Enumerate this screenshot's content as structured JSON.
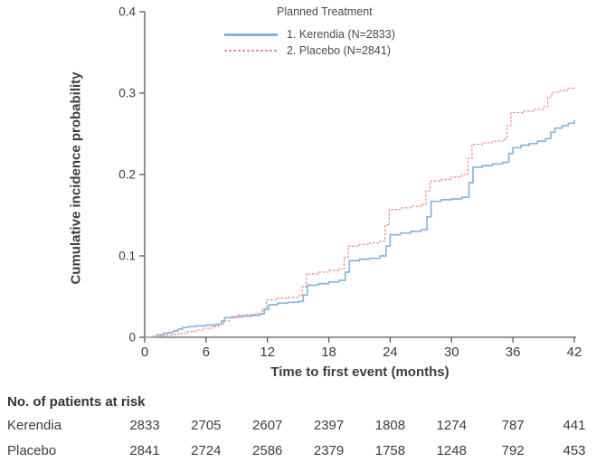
{
  "figure_colors": {
    "kerendia_blue": "#85b5de",
    "placebo_red": "#ef8f90",
    "axis_gray": "#57585a",
    "text_dark": "#3d3d3f"
  },
  "chart_data": {
    "type": "line",
    "subtype": "step-cumulative-incidence",
    "title": "",
    "xlabel": "Time to first event (months)",
    "ylabel": "Cumulative incidence probability",
    "xlim": [
      0,
      42
    ],
    "ylim": [
      0,
      0.4
    ],
    "xticks": [
      0,
      6,
      12,
      18,
      24,
      30,
      36,
      42
    ],
    "yticks": [
      0,
      0.1,
      0.2,
      0.3,
      0.4
    ],
    "ytick_labels": [
      "0",
      "0.1",
      "0.2",
      "0.3",
      "0.4"
    ],
    "grid": false,
    "legend": {
      "position": "top-center",
      "title": "Planned Treatment",
      "entries": [
        {
          "label": "1.  Kerendia (N=2833)",
          "color": "#85b5de",
          "style": "solid"
        },
        {
          "label": "2.  Placebo (N=2841)",
          "color": "#ef8f90",
          "style": "dashed"
        }
      ]
    },
    "series": [
      {
        "name": "Kerendia",
        "color": "#85b5de",
        "style": "solid",
        "points": [
          [
            0,
            0
          ],
          [
            0.8,
            0.001
          ],
          [
            1.2,
            0.003
          ],
          [
            1.8,
            0.005
          ],
          [
            2.3,
            0.006
          ],
          [
            2.8,
            0.008
          ],
          [
            3.3,
            0.01
          ],
          [
            3.7,
            0.012
          ],
          [
            4.2,
            0.013
          ],
          [
            5,
            0.014
          ],
          [
            6,
            0.015
          ],
          [
            7,
            0.016
          ],
          [
            7.5,
            0.02
          ],
          [
            7.8,
            0.024
          ],
          [
            8.5,
            0.025
          ],
          [
            9.5,
            0.026
          ],
          [
            10.5,
            0.027
          ],
          [
            11.3,
            0.029
          ],
          [
            11.7,
            0.034
          ],
          [
            12.1,
            0.04
          ],
          [
            13,
            0.042
          ],
          [
            14,
            0.043
          ],
          [
            15,
            0.044
          ],
          [
            15.5,
            0.052
          ],
          [
            15.9,
            0.064
          ],
          [
            17,
            0.066
          ],
          [
            18,
            0.068
          ],
          [
            19,
            0.07
          ],
          [
            19.6,
            0.08
          ],
          [
            20,
            0.094
          ],
          [
            21,
            0.096
          ],
          [
            22,
            0.097
          ],
          [
            23,
            0.1
          ],
          [
            23.6,
            0.112
          ],
          [
            24,
            0.126
          ],
          [
            25,
            0.128
          ],
          [
            26,
            0.13
          ],
          [
            27,
            0.132
          ],
          [
            27.6,
            0.148
          ],
          [
            28,
            0.167
          ],
          [
            29,
            0.169
          ],
          [
            30,
            0.17
          ],
          [
            31,
            0.172
          ],
          [
            31.7,
            0.19
          ],
          [
            32.1,
            0.209
          ],
          [
            33,
            0.211
          ],
          [
            34,
            0.213
          ],
          [
            35,
            0.215
          ],
          [
            35.6,
            0.226
          ],
          [
            36,
            0.233
          ],
          [
            36.8,
            0.236
          ],
          [
            37.6,
            0.238
          ],
          [
            38.4,
            0.241
          ],
          [
            39.2,
            0.244
          ],
          [
            39.7,
            0.252
          ],
          [
            40.1,
            0.257
          ],
          [
            40.8,
            0.26
          ],
          [
            41.4,
            0.263
          ],
          [
            42,
            0.267
          ]
        ]
      },
      {
        "name": "Placebo",
        "color": "#ef8f90",
        "style": "dashed",
        "points": [
          [
            0,
            0
          ],
          [
            1,
            0.001
          ],
          [
            1.6,
            0.002
          ],
          [
            2.2,
            0.003
          ],
          [
            3,
            0.004
          ],
          [
            3.6,
            0.005
          ],
          [
            4.2,
            0.007
          ],
          [
            5,
            0.009
          ],
          [
            5.8,
            0.011
          ],
          [
            6.6,
            0.013
          ],
          [
            7.2,
            0.016
          ],
          [
            7.7,
            0.02
          ],
          [
            8.3,
            0.024
          ],
          [
            9,
            0.027
          ],
          [
            10,
            0.028
          ],
          [
            11,
            0.029
          ],
          [
            11.5,
            0.035
          ],
          [
            11.9,
            0.046
          ],
          [
            13,
            0.048
          ],
          [
            14,
            0.049
          ],
          [
            15,
            0.051
          ],
          [
            15.4,
            0.062
          ],
          [
            15.8,
            0.078
          ],
          [
            17,
            0.08
          ],
          [
            18,
            0.082
          ],
          [
            19,
            0.084
          ],
          [
            19.5,
            0.098
          ],
          [
            19.9,
            0.112
          ],
          [
            21,
            0.114
          ],
          [
            22,
            0.116
          ],
          [
            23,
            0.118
          ],
          [
            23.5,
            0.138
          ],
          [
            23.9,
            0.157
          ],
          [
            25,
            0.159
          ],
          [
            26,
            0.161
          ],
          [
            27,
            0.163
          ],
          [
            27.5,
            0.18
          ],
          [
            27.9,
            0.192
          ],
          [
            29,
            0.194
          ],
          [
            30,
            0.197
          ],
          [
            31,
            0.2
          ],
          [
            31.6,
            0.22
          ],
          [
            32,
            0.237
          ],
          [
            33,
            0.239
          ],
          [
            34,
            0.241
          ],
          [
            35,
            0.243
          ],
          [
            35.4,
            0.26
          ],
          [
            35.8,
            0.276
          ],
          [
            37,
            0.278
          ],
          [
            38,
            0.28
          ],
          [
            39,
            0.283
          ],
          [
            39.4,
            0.295
          ],
          [
            39.8,
            0.301
          ],
          [
            40.6,
            0.303
          ],
          [
            41.3,
            0.306
          ],
          [
            42,
            0.308
          ]
        ]
      }
    ]
  },
  "at_risk": {
    "title": "No. of patients at risk",
    "timepoints": [
      0,
      6,
      12,
      18,
      24,
      30,
      36,
      42
    ],
    "rows": [
      {
        "label": "Kerendia",
        "counts": [
          "2833",
          "2705",
          "2607",
          "2397",
          "1808",
          "1274",
          "787",
          "441"
        ]
      },
      {
        "label": "Placebo",
        "counts": [
          "2841",
          "2724",
          "2586",
          "2379",
          "1758",
          "1248",
          "792",
          "453"
        ]
      }
    ]
  }
}
